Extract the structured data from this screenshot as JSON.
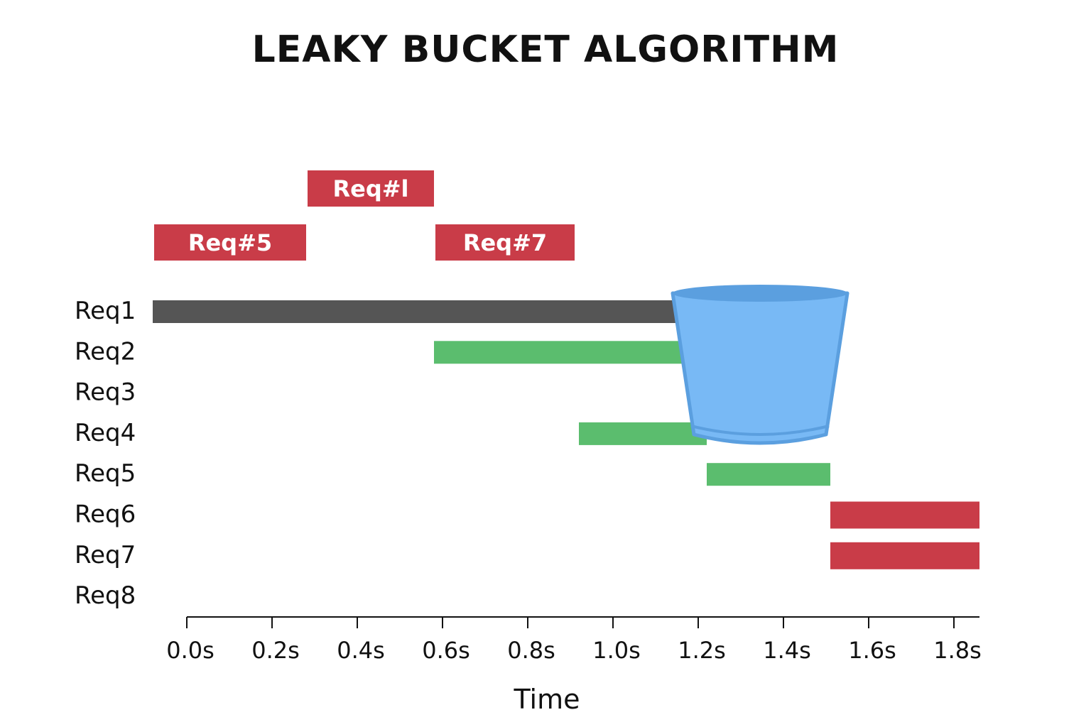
{
  "title": "LEAKY BUCKET ALGORITHM",
  "colors": {
    "rejected": "#c93c48",
    "accepted": "#5bbd6e",
    "processing": "#555555",
    "bucket_fill": "#78b9f5",
    "bucket_edge": "#5b9fdf",
    "axis": "#111111"
  },
  "queued_tags": [
    {
      "label": "Req#l",
      "start": 0.28,
      "end": 0.58,
      "level": 2
    },
    {
      "label": "Req#5",
      "start": -0.08,
      "end": 0.28,
      "level": 1
    },
    {
      "label": "Req#7",
      "start": 0.58,
      "end": 0.91,
      "level": 1
    }
  ],
  "bucket": {
    "label": "bucket-icon",
    "start": 1.14,
    "end": 1.55
  },
  "chart_data": {
    "type": "gantt",
    "title": "LEAKY BUCKET ALGORITHM",
    "xlabel": "Time",
    "ylabel": "",
    "xlim": [
      -0.08,
      1.86
    ],
    "xticks": [
      "0.0s",
      "0.2s",
      "0.4s",
      "0.6s",
      "0.8s",
      "1.0s",
      "1.2s",
      "1.4s",
      "1.6s",
      "1.8s"
    ],
    "xtick_values": [
      0.0,
      0.2,
      0.4,
      0.6,
      0.8,
      1.0,
      1.2,
      1.4,
      1.6,
      1.8
    ],
    "categories": [
      "Req1",
      "Req2",
      "Req3",
      "Req4",
      "Req5",
      "Req6",
      "Req7",
      "Req8"
    ],
    "bars": [
      {
        "row": "Req1",
        "start": -0.08,
        "end": 1.16,
        "status": "processing"
      },
      {
        "row": "Req2",
        "start": 0.58,
        "end": 1.18,
        "status": "accepted"
      },
      {
        "row": "Req4",
        "start": 0.92,
        "end": 1.22,
        "status": "accepted"
      },
      {
        "row": "Req5",
        "start": 1.22,
        "end": 1.51,
        "status": "accepted"
      },
      {
        "row": "Req6",
        "start": 1.51,
        "end": 1.86,
        "status": "rejected"
      },
      {
        "row": "Req7",
        "start": 1.51,
        "end": 1.86,
        "status": "rejected"
      }
    ]
  }
}
